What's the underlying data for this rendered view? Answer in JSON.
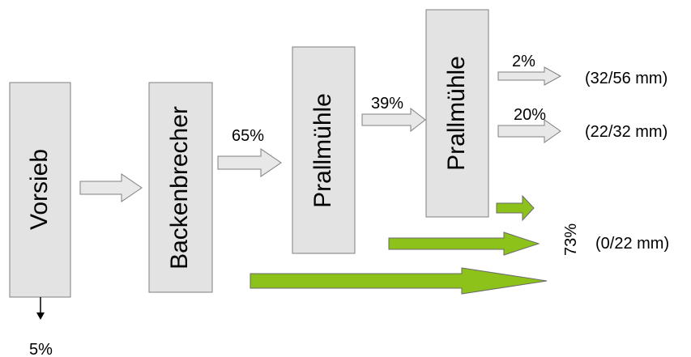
{
  "stages": {
    "vorsieb": "Vorsieb",
    "backenbrecher": "Backenbrecher",
    "prallmuehle_1": "Prallmühle",
    "prallmuehle_2": "Prallmühle"
  },
  "flows": {
    "vorsieb_out": "5%",
    "backenbrecher_out": "65%",
    "prallmuehle_1_out": "39%",
    "product_coarse_pct": "2%",
    "product_medium_pct": "20%",
    "product_fine_pct": "73%"
  },
  "products": {
    "coarse": "(32/56 mm)",
    "medium": "(22/32 mm)",
    "fine": "(0/22 mm)"
  },
  "colors": {
    "box_fill": "#e3e3e3",
    "grey_arrow": "#e8e8e8",
    "green_arrow": "#8cc21a"
  }
}
